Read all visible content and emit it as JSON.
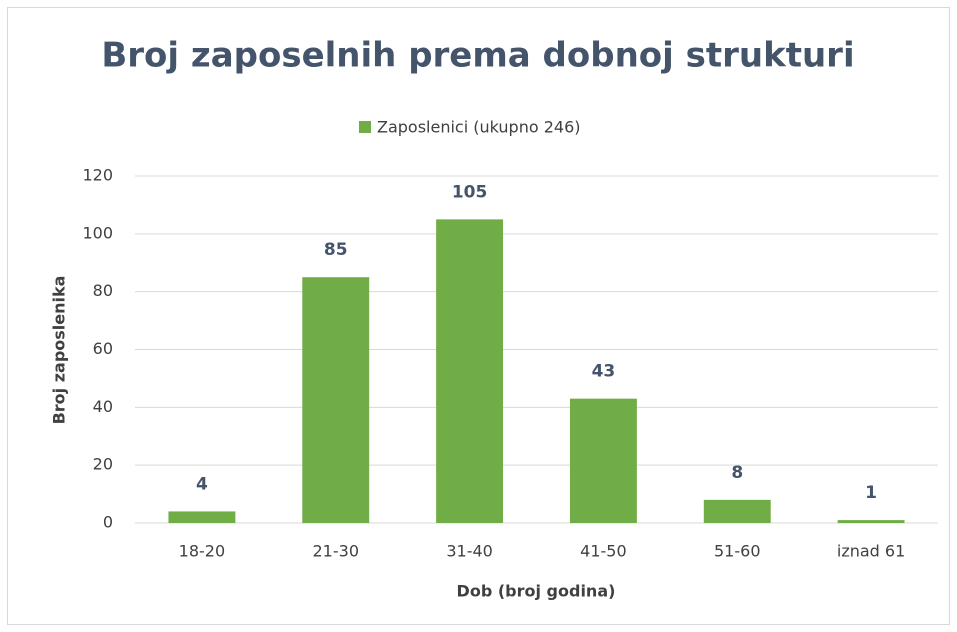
{
  "chart_data": {
    "type": "bar",
    "title": "Broj zaposelnih prema dobnoj strukturi",
    "x_label": "Dob (broj godina)",
    "y_label": "Broj zaposlenika",
    "categories": [
      "18-20",
      "21-30",
      "31-40",
      "41-50",
      "51-60",
      "iznad 61"
    ],
    "series": [
      {
        "name": "Zaposlenici (ukupno 246)",
        "color": "#70ad47",
        "values": [
          4,
          85,
          105,
          43,
          8,
          1
        ]
      }
    ],
    "ylim": [
      0,
      120
    ],
    "yticks": [
      0,
      20,
      40,
      60,
      80,
      100,
      120
    ],
    "grid": true,
    "legend": "top",
    "data_labels": true
  }
}
